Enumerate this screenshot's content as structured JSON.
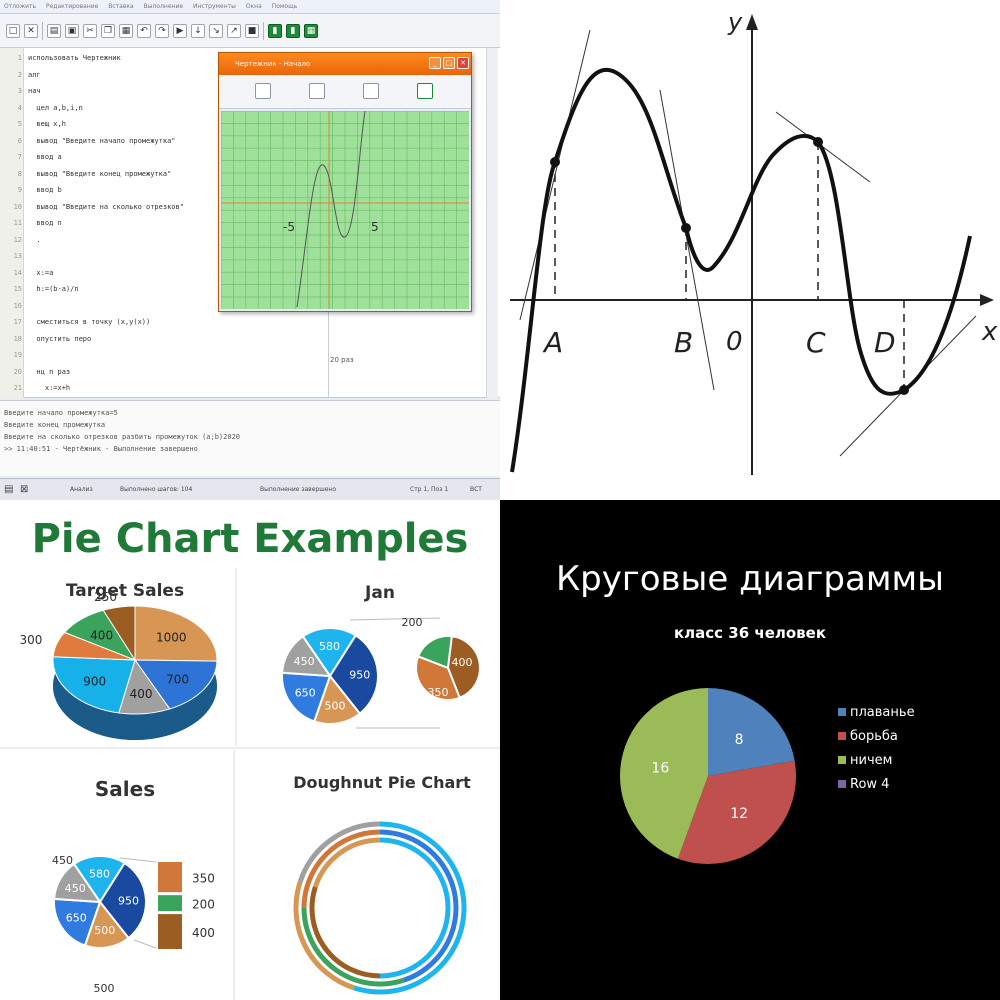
{
  "ide": {
    "menu": [
      "Отложить",
      "Редактирование",
      "Вставка",
      "Выполнение",
      "Инструменты",
      "Окна",
      "Помощь"
    ],
    "code_lines": [
      {
        "n": "1",
        "t": "использовать Чертежник"
      },
      {
        "n": "2",
        "t": "алг"
      },
      {
        "n": "3",
        "t": "нач"
      },
      {
        "n": "4",
        "t": "  цел a,b,i,n"
      },
      {
        "n": "5",
        "t": "  вещ x,h"
      },
      {
        "n": "6",
        "t": "  вывод \"Введите начало промежутка\""
      },
      {
        "n": "7",
        "t": "  ввод a"
      },
      {
        "n": "8",
        "t": "  вывод \"Введите конец промежутка\""
      },
      {
        "n": "9",
        "t": "  ввод b"
      },
      {
        "n": "10",
        "t": "  вывод \"Введите на сколько отрезков\""
      },
      {
        "n": "11",
        "t": "  ввод n"
      },
      {
        "n": "12",
        "t": "  ."
      },
      {
        "n": "13",
        "t": ""
      },
      {
        "n": "14",
        "t": "  x:=a"
      },
      {
        "n": "15",
        "t": "  h:=(b-a)/n"
      },
      {
        "n": "16",
        "t": ""
      },
      {
        "n": "17",
        "t": "  сместиться в точку (x,y(x))"
      },
      {
        "n": "18",
        "t": "  опустить перо"
      },
      {
        "n": "19",
        "t": ""
      },
      {
        "n": "20",
        "t": "  нц n раз"
      },
      {
        "n": "21",
        "t": "    x:=x+h"
      }
    ],
    "output_lines": [
      "Введите начало промежутка=5",
      "Введите конец промежутка",
      "Введите на сколько отрезков разбить промежуток (a;b)2020",
      ">> 11:40:51 - Чертёжник - Выполнение завершено"
    ],
    "status": {
      "mode": "Анализ",
      "steps": "Выполнено шагов: 104",
      "state": "Выполнение завершено",
      "position": "Стр 1, Поз 1",
      "ins": "ВСТ"
    },
    "graph_window": {
      "title": "Чертежник - Начало",
      "label_left": "-5",
      "label_right": "5"
    },
    "step_readout": "20 раз"
  },
  "function_graph": {
    "y_label": "y",
    "x_label": "x",
    "origin_label": "0",
    "point_labels": [
      "A",
      "B",
      "C",
      "D"
    ]
  },
  "pie_examples": {
    "heading": "Pie Chart Examples",
    "target_sales": {
      "title": "Target Sales",
      "values": [
        "1000",
        "700",
        "400",
        "900",
        "300",
        "400",
        "250"
      ]
    },
    "jan": {
      "title": "Jan",
      "main_values": [
        "580",
        "950",
        "500",
        "650",
        "450"
      ],
      "sub_values": [
        "200",
        "400",
        "350"
      ]
    },
    "sales": {
      "title": "Sales",
      "main_values": [
        "580",
        "950",
        "500",
        "650",
        "450"
      ],
      "bar_values": [
        "350",
        "200",
        "400"
      ]
    },
    "doughnut": {
      "title": "Doughnut Pie Chart"
    }
  },
  "chart_data": [
    {
      "type": "pie",
      "title": "Target Sales",
      "values": [
        1000,
        700,
        400,
        900,
        300,
        400,
        250
      ]
    },
    {
      "type": "pie",
      "title": "Jan",
      "values": [
        580,
        950,
        500,
        650,
        450
      ],
      "secondary_values": [
        200,
        400,
        350
      ]
    },
    {
      "type": "pie",
      "title": "Sales",
      "values": [
        580,
        950,
        500,
        650,
        450
      ],
      "secondary_values": [
        350,
        200,
        400
      ]
    },
    {
      "type": "pie",
      "title": "Кругoвые диаграммы",
      "subtitle": "класс 36 человек",
      "categories": [
        "плаванье",
        "борьба",
        "ничем",
        "Row 4"
      ],
      "values": [
        8,
        12,
        16,
        0
      ],
      "colors": [
        "#4f81bd",
        "#c0504d",
        "#9bbb59",
        "#8064a2"
      ],
      "legend": "right"
    }
  ],
  "russian_pie": {
    "title": "Кругoвые диаграммы",
    "subtitle": "класс 36 человек",
    "legend": [
      "плаванье",
      "борьба",
      "ничем",
      "Row 4"
    ],
    "labels": [
      "8",
      "12",
      "16"
    ]
  }
}
